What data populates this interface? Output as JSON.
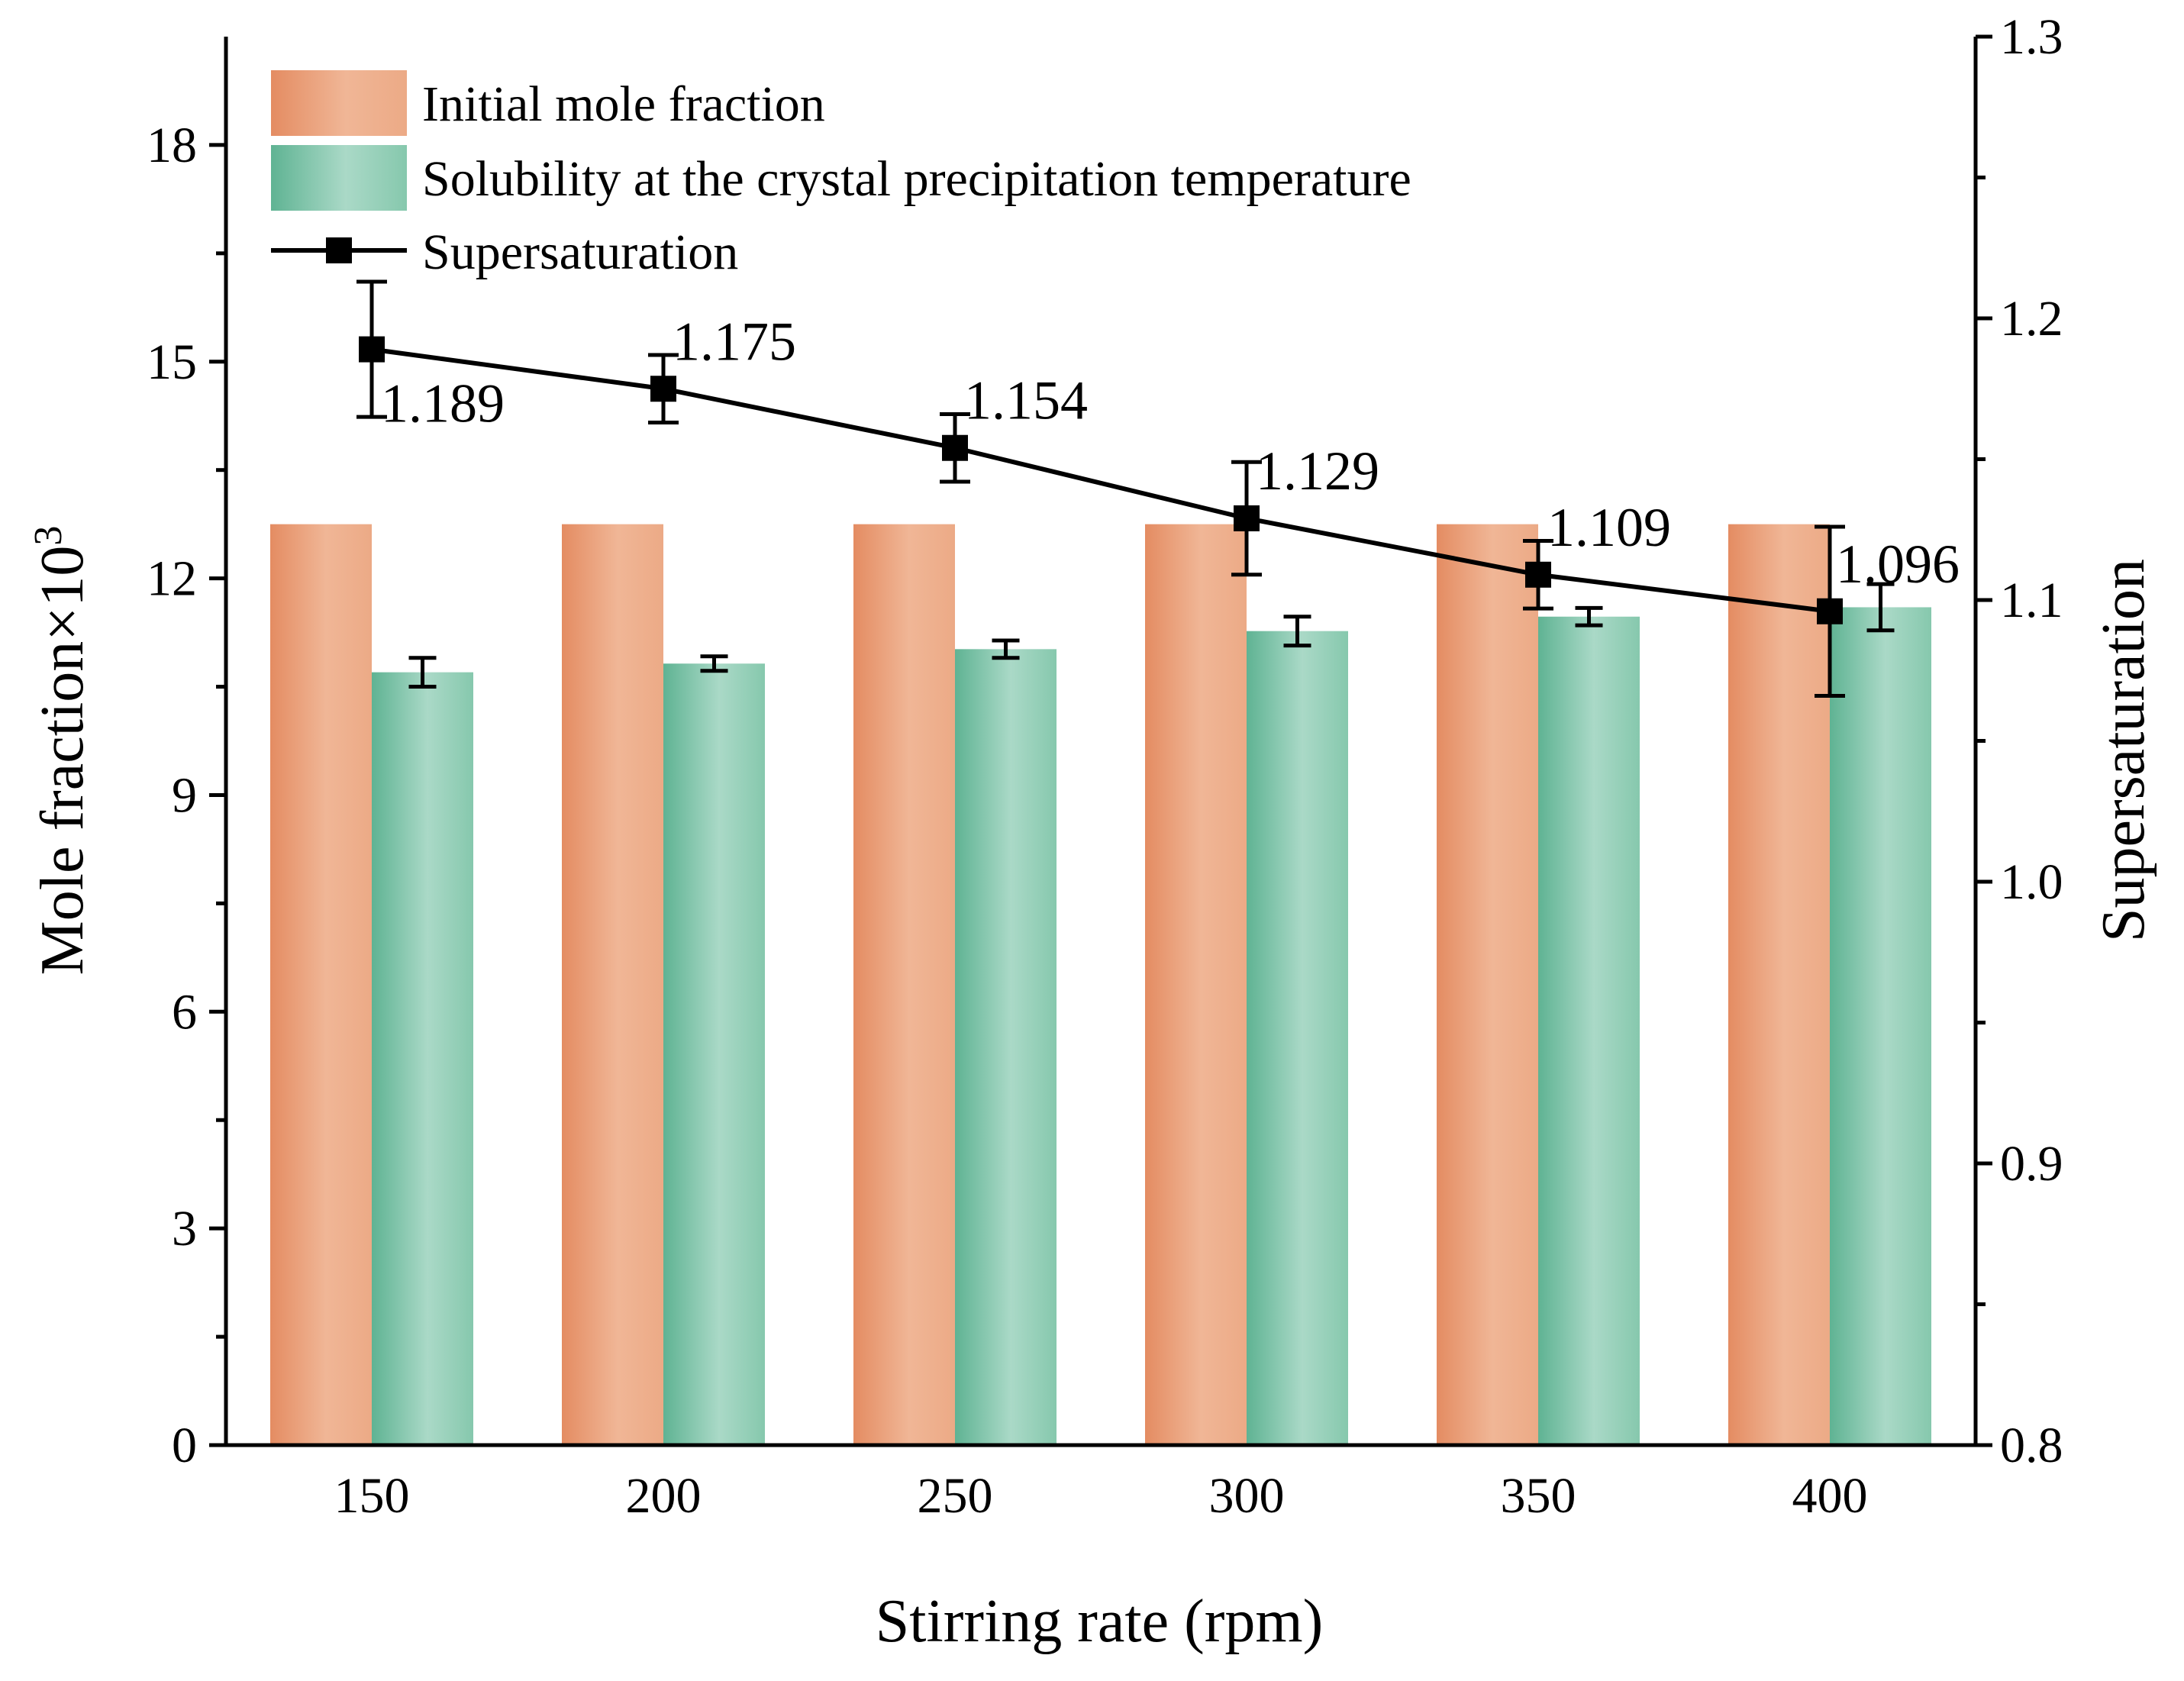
{
  "chart_data": {
    "type": "bar",
    "title": "",
    "xlabel": "Stirring rate (rpm)",
    "ylabel": "Mole fraction×10",
    "ylabel_superscript": "3",
    "y2label": "Supersaturation",
    "categories": [
      "150",
      "200",
      "250",
      "300",
      "350",
      "400"
    ],
    "ylim": [
      0,
      19.5
    ],
    "yticks": [
      "0",
      "3",
      "6",
      "9",
      "12",
      "15",
      "18"
    ],
    "y2lim": [
      0.8,
      1.3
    ],
    "y2ticks": [
      "0.8",
      "0.9",
      "1.0",
      "1.1",
      "1.2",
      "1.3"
    ],
    "legend_position": "top-left",
    "series": [
      {
        "name": "Initial mole fraction",
        "type": "bar",
        "axis": "left",
        "color": "#e48c62",
        "values": [
          12.75,
          12.75,
          12.75,
          12.75,
          12.75,
          12.75
        ],
        "errors": [
          0,
          0,
          0,
          0,
          0,
          0
        ]
      },
      {
        "name": "Solubility at the crystal precipitation temperature",
        "type": "bar",
        "axis": "left",
        "color": "#5fb393",
        "values": [
          10.7,
          10.82,
          11.02,
          11.27,
          11.47,
          11.6
        ],
        "errors": [
          0.2,
          0.1,
          0.12,
          0.2,
          0.12,
          0.32
        ]
      },
      {
        "name": "Supersaturation",
        "type": "line",
        "axis": "right",
        "color": "#000000",
        "values": [
          1.189,
          1.175,
          1.154,
          1.129,
          1.109,
          1.096
        ],
        "errors": [
          0.024,
          0.012,
          0.012,
          0.02,
          0.012,
          0.03
        ],
        "data_labels": [
          "1.189",
          "1.175",
          "1.154",
          "1.129",
          "1.109",
          "1.096"
        ]
      }
    ]
  }
}
